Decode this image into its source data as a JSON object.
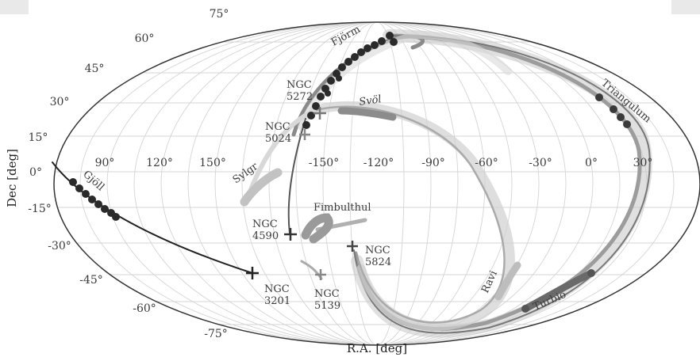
{
  "axes": {
    "xlabel": "R.A. [deg]",
    "ylabel": "Dec [deg]",
    "ra_ticks": [
      "90°",
      "120°",
      "150°",
      "-150°",
      "-120°",
      "-90°",
      "-60°",
      "-30°",
      "0°",
      "30°"
    ],
    "dec_ticks": [
      "75°",
      "60°",
      "45°",
      "30°",
      "15°",
      "0°",
      "-15°",
      "-30°",
      "-45°",
      "-60°",
      "-75°"
    ]
  },
  "streams": {
    "fjorm": "Fjörm",
    "svol": "Svöl",
    "sylgr": "Sylgr",
    "gjoll": "Gjöll",
    "fimbulthul": "Fimbulthul",
    "ravi": "Ravi",
    "turbio": "Turbio",
    "triangulum": "Triangulum"
  },
  "clusters": {
    "ngc5272": [
      "NGC",
      "5272"
    ],
    "ngc5024": [
      "NGC",
      "5024"
    ],
    "ngc4590": [
      "NGC",
      "4590"
    ],
    "ngc3201": [
      "NGC",
      "3201"
    ],
    "ngc5139": [
      "NGC",
      "5139"
    ],
    "ngc5824": [
      "NGC",
      "5824"
    ]
  }
}
